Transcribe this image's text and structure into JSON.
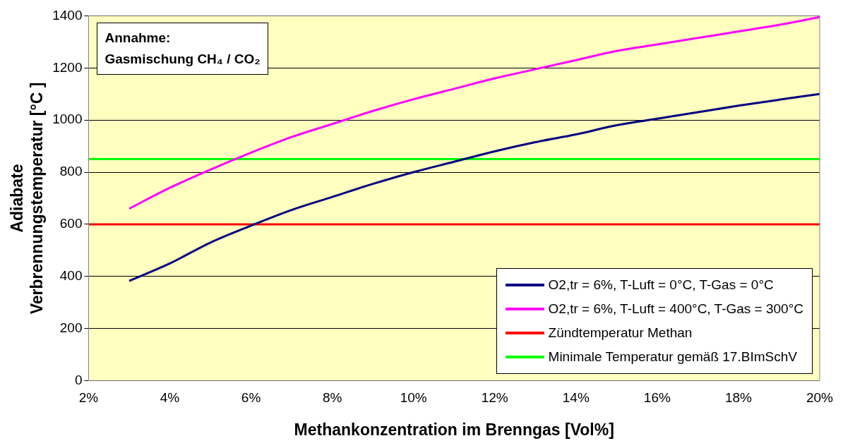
{
  "chart_data": {
    "type": "line",
    "xlabel": "Methankonzentration im Brenngas [Vol%]",
    "ylabel": "Adiabate\nVerbrennungstemperatur [°C ]",
    "x": [
      3,
      4,
      5,
      6,
      7,
      8,
      9,
      10,
      11,
      12,
      13,
      14,
      15,
      16,
      17,
      18,
      19,
      20
    ],
    "series": [
      {
        "name": "O2,tr = 6%, T-Luft = 0°C, T-Gas = 0°C",
        "color": "#000080",
        "values": [
          383,
          450,
          530,
          595,
          655,
          705,
          755,
          800,
          840,
          880,
          915,
          945,
          980,
          1005,
          1030,
          1055,
          1078,
          1100
        ]
      },
      {
        "name": "O2,tr = 6%, T-Luft = 400°C, T-Gas = 300°C",
        "color": "#ff00ff",
        "values": [
          660,
          740,
          810,
          875,
          935,
          985,
          1035,
          1080,
          1120,
          1160,
          1195,
          1230,
          1265,
          1290,
          1315,
          1340,
          1365,
          1395
        ]
      }
    ],
    "ref_lines": [
      {
        "axis": "y",
        "value": 600,
        "label": "Zündtemperatur Methan",
        "color": "#ff0000"
      },
      {
        "axis": "y",
        "value": 850,
        "label": "Minimale Temperatur gemäß 17.BImSchV",
        "color": "#00ff00"
      }
    ],
    "annotations": [
      "Annahme:",
      "Gasmischung CH₄ / CO₂"
    ],
    "xlim": [
      2,
      20
    ],
    "xticks": [
      {
        "value": 2,
        "label": "2%"
      },
      {
        "value": 4,
        "label": "4%"
      },
      {
        "value": 6,
        "label": "6%"
      },
      {
        "value": 8,
        "label": "8%"
      },
      {
        "value": 10,
        "label": "10%"
      },
      {
        "value": 12,
        "label": "12%"
      },
      {
        "value": 14,
        "label": "14%"
      },
      {
        "value": 16,
        "label": "16%"
      },
      {
        "value": 18,
        "label": "18%"
      },
      {
        "value": 20,
        "label": "20%"
      }
    ],
    "ylim": [
      0,
      1400
    ],
    "yticks": [
      0,
      200,
      400,
      600,
      800,
      1000,
      1200,
      1400
    ],
    "grid": "y",
    "legend": "bottom right",
    "marker": "none",
    "line_style": "solid"
  }
}
